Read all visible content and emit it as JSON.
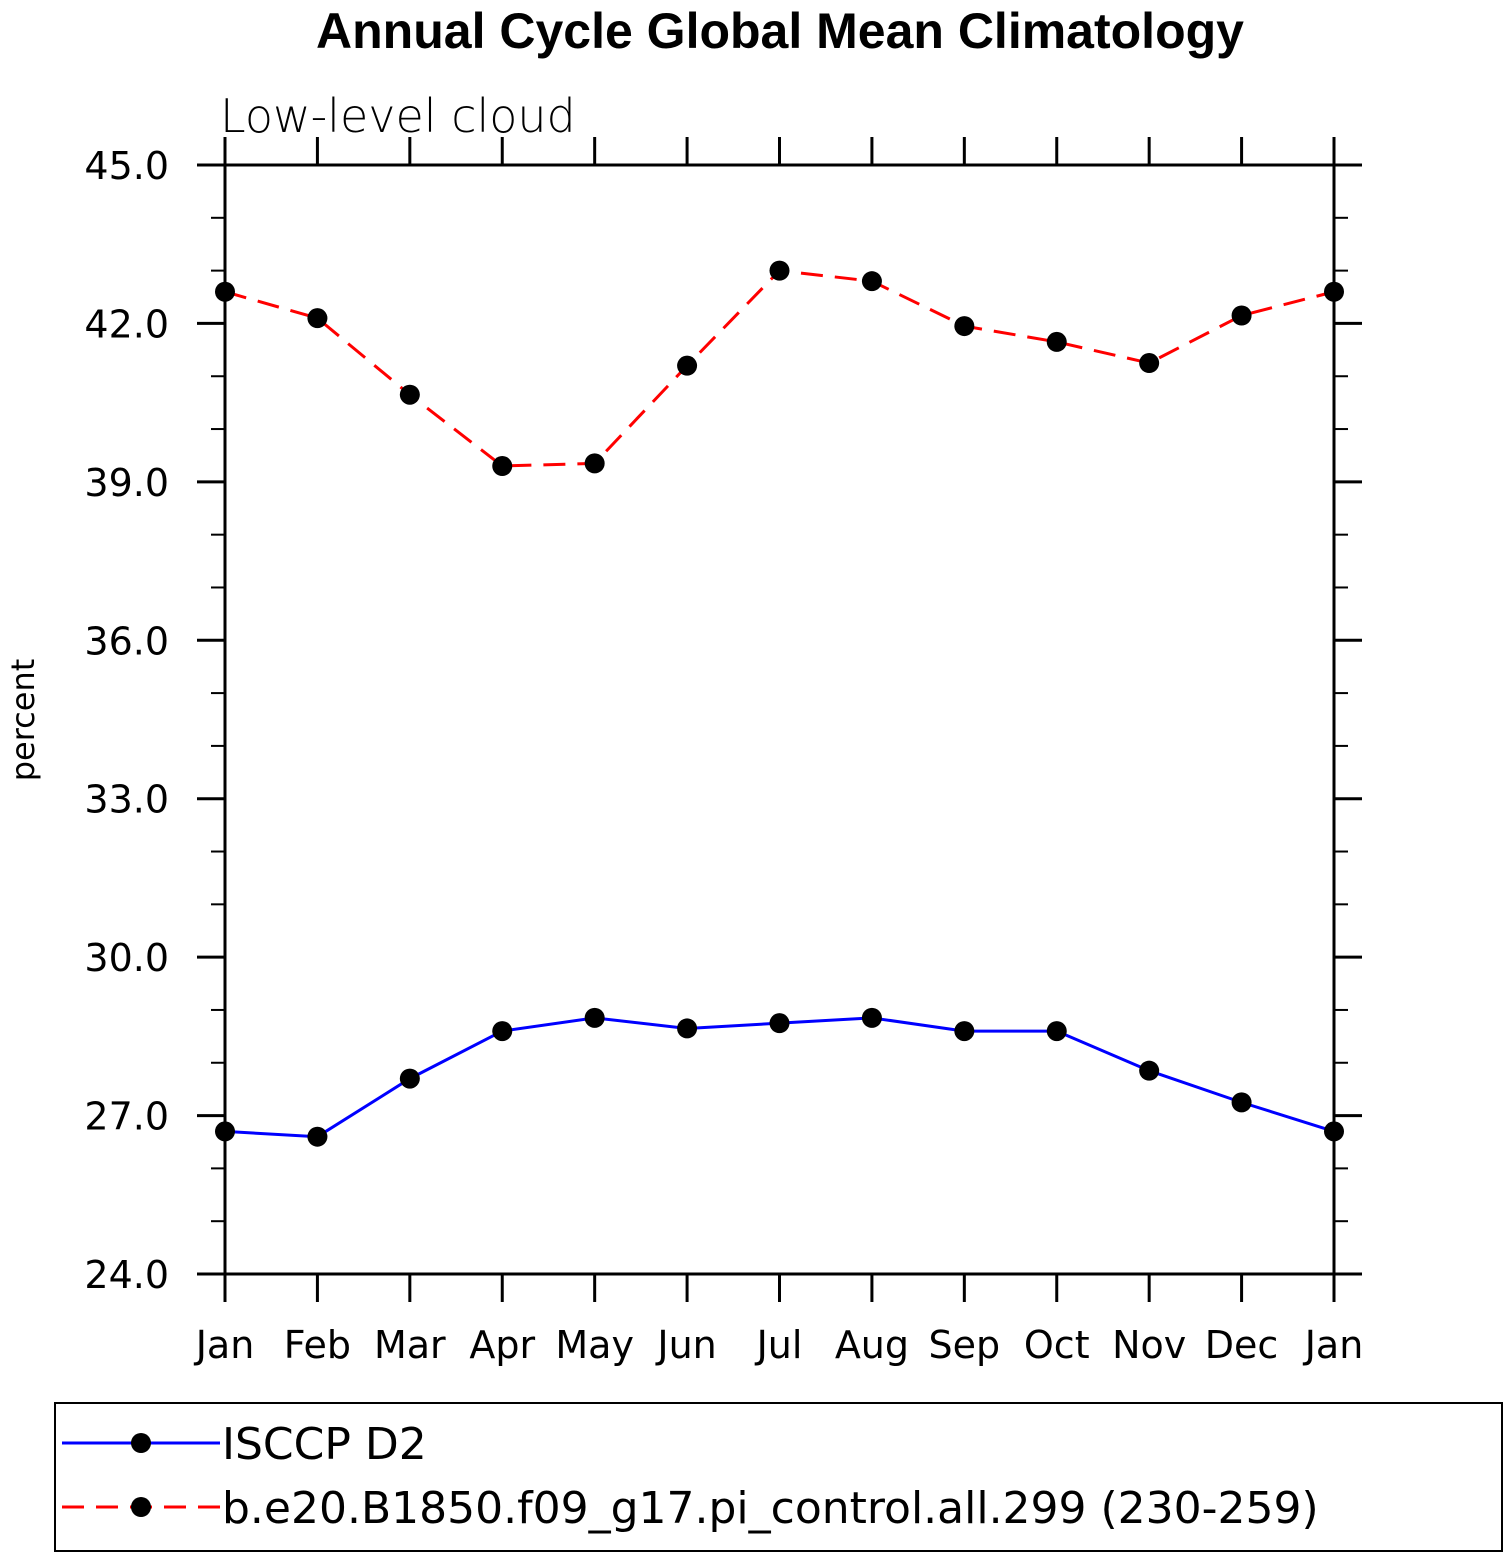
{
  "chart_data": {
    "type": "line",
    "title": "Annual Cycle Global Mean Climatology",
    "subtitle": "Low-level cloud",
    "ylabel": "percent",
    "xlabel": "",
    "ylim": [
      24.0,
      45.0
    ],
    "yticks": [
      "24.0",
      "27.0",
      "30.0",
      "33.0",
      "36.0",
      "39.0",
      "42.0",
      "45.0"
    ],
    "categories": [
      "Jan",
      "Feb",
      "Mar",
      "Apr",
      "May",
      "Jun",
      "Jul",
      "Aug",
      "Sep",
      "Oct",
      "Nov",
      "Dec",
      "Jan"
    ],
    "series": [
      {
        "name": "ISCCP D2",
        "color": "#0000ff",
        "line_style": "solid",
        "marker": "filled-circle",
        "values": [
          26.7,
          26.6,
          27.7,
          28.6,
          28.85,
          28.65,
          28.75,
          28.85,
          28.6,
          28.6,
          27.85,
          27.25,
          26.7
        ]
      },
      {
        "name": "b.e20.B1850.f09_g17.pi_control.all.299 (230-259)",
        "color": "#ff0000",
        "line_style": "dashed",
        "marker": "filled-circle",
        "values": [
          42.6,
          42.1,
          40.65,
          39.3,
          39.35,
          41.2,
          43.0,
          42.8,
          41.95,
          41.65,
          41.25,
          42.15,
          42.6
        ]
      }
    ],
    "legend_position": "bottom",
    "grid": false
  }
}
